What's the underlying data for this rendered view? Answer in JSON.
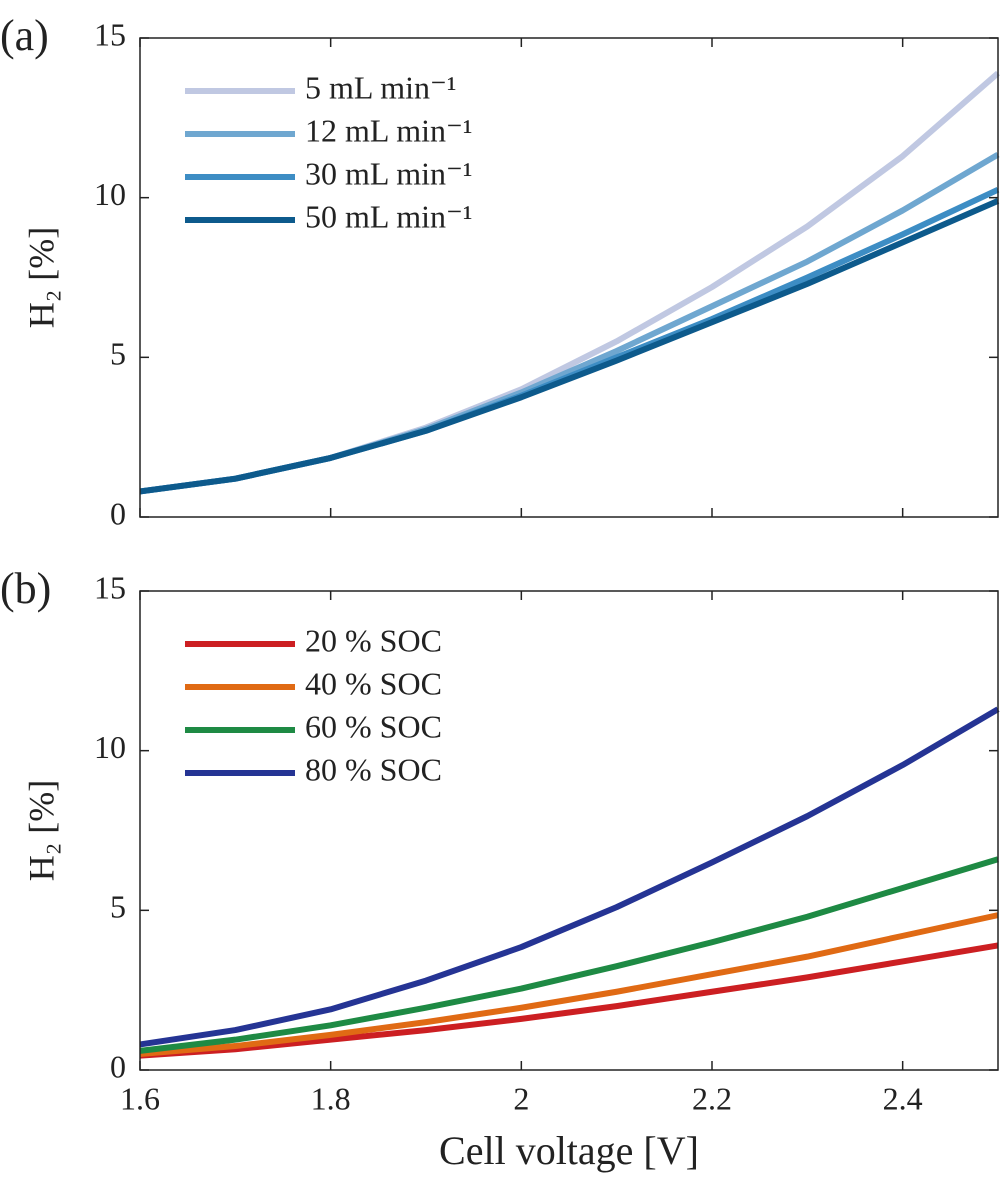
{
  "chart_data": [
    {
      "type": "line",
      "panel_label": "(a)",
      "y_label": "H₂ [%]",
      "x": [
        1.6,
        1.7,
        1.8,
        1.9,
        2.0,
        2.1,
        2.2,
        2.3,
        2.4,
        2.5
      ],
      "xlim": [
        1.6,
        2.5
      ],
      "xticks": [
        1.6,
        1.8,
        2,
        2.2,
        2.4
      ],
      "ylim": [
        0,
        15
      ],
      "yticks": [
        0,
        5,
        10,
        15
      ],
      "legend": "upper left",
      "series": [
        {
          "name": "5 mL min⁻¹",
          "color": "#c0c8e2",
          "values": [
            0.8,
            1.2,
            1.85,
            2.8,
            4.0,
            5.5,
            7.2,
            9.1,
            11.3,
            13.9
          ]
        },
        {
          "name": "12 mL min⁻¹",
          "color": "#6fa7d0",
          "values": [
            0.8,
            1.2,
            1.85,
            2.75,
            3.9,
            5.2,
            6.6,
            8.0,
            9.6,
            11.35
          ]
        },
        {
          "name": "30 mL min⁻¹",
          "color": "#3d8dc4",
          "values": [
            0.8,
            1.2,
            1.85,
            2.7,
            3.8,
            5.0,
            6.2,
            7.5,
            8.85,
            10.25
          ]
        },
        {
          "name": "50 mL min⁻¹",
          "color": "#0d5a8c",
          "values": [
            0.8,
            1.2,
            1.85,
            2.7,
            3.75,
            4.9,
            6.1,
            7.3,
            8.6,
            9.9
          ]
        }
      ]
    },
    {
      "type": "line",
      "panel_label": "(b)",
      "y_label": "H₂ [%]",
      "x_label": "Cell voltage [V]",
      "x": [
        1.6,
        1.7,
        1.8,
        1.9,
        2.0,
        2.1,
        2.2,
        2.3,
        2.4,
        2.5
      ],
      "xlim": [
        1.6,
        2.5
      ],
      "xticks": [
        1.6,
        1.8,
        2,
        2.2,
        2.4
      ],
      "ylim": [
        0,
        15
      ],
      "yticks": [
        0,
        5,
        10,
        15
      ],
      "legend": "upper left",
      "series": [
        {
          "name": "20 % SOC",
          "color": "#cc1f22",
          "values": [
            0.45,
            0.65,
            0.95,
            1.25,
            1.6,
            2.0,
            2.45,
            2.9,
            3.4,
            3.9
          ]
        },
        {
          "name": "40 % SOC",
          "color": "#e06a14",
          "values": [
            0.5,
            0.75,
            1.1,
            1.5,
            1.95,
            2.45,
            3.0,
            3.55,
            4.2,
            4.85
          ]
        },
        {
          "name": "60 % SOC",
          "color": "#1e8a44",
          "values": [
            0.6,
            0.95,
            1.4,
            1.95,
            2.55,
            3.25,
            4.0,
            4.8,
            5.7,
            6.6
          ]
        },
        {
          "name": "80 % SOC",
          "color": "#253494",
          "values": [
            0.8,
            1.25,
            1.9,
            2.8,
            3.85,
            5.1,
            6.5,
            7.95,
            9.55,
            11.3
          ]
        }
      ]
    }
  ]
}
